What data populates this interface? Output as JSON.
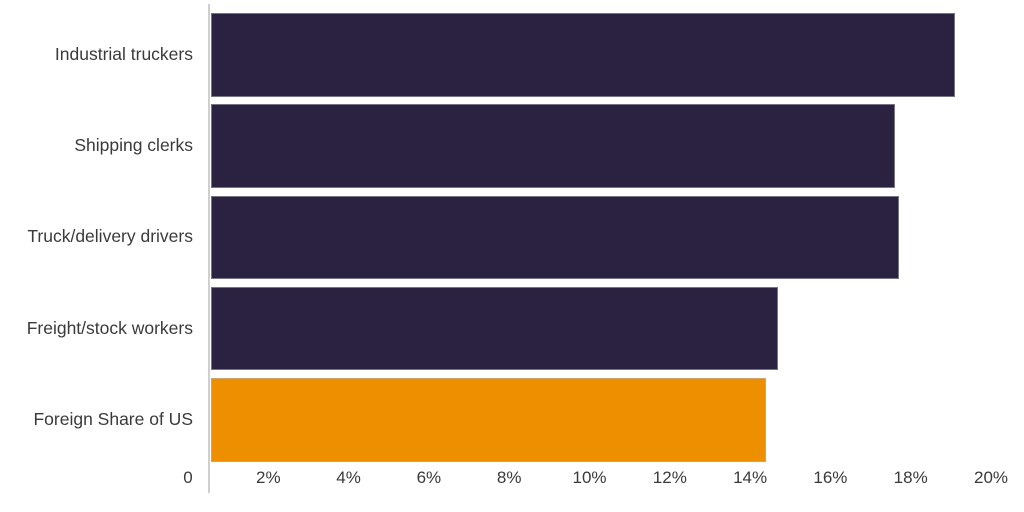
{
  "chart_data": {
    "type": "bar",
    "orientation": "horizontal",
    "title": "",
    "categories": [
      "Industrial truckers",
      "Shipping clerks",
      "Truck/delivery drivers",
      "Freight/stock workers",
      "Foreign Share of US"
    ],
    "values": [
      19.1,
      17.6,
      17.7,
      14.7,
      14.4
    ],
    "value_unit": "%",
    "highlight_index": 4,
    "xlim": [
      0,
      20
    ],
    "x_tick_values": [
      0,
      2,
      4,
      6,
      8,
      10,
      12,
      14,
      16,
      18,
      20
    ],
    "x_tick_labels": [
      "0",
      "2%",
      "4%",
      "6%",
      "8%",
      "10%",
      "12%",
      "14%",
      "16%",
      "18%",
      "20%"
    ],
    "grid": false,
    "legend": "none",
    "colors": {
      "bar": "#2a2240",
      "bar_highlight": "#ee8f00",
      "axis_line": "#cfcfcf",
      "text": "#3a3a3a",
      "background": "#ffffff"
    }
  }
}
